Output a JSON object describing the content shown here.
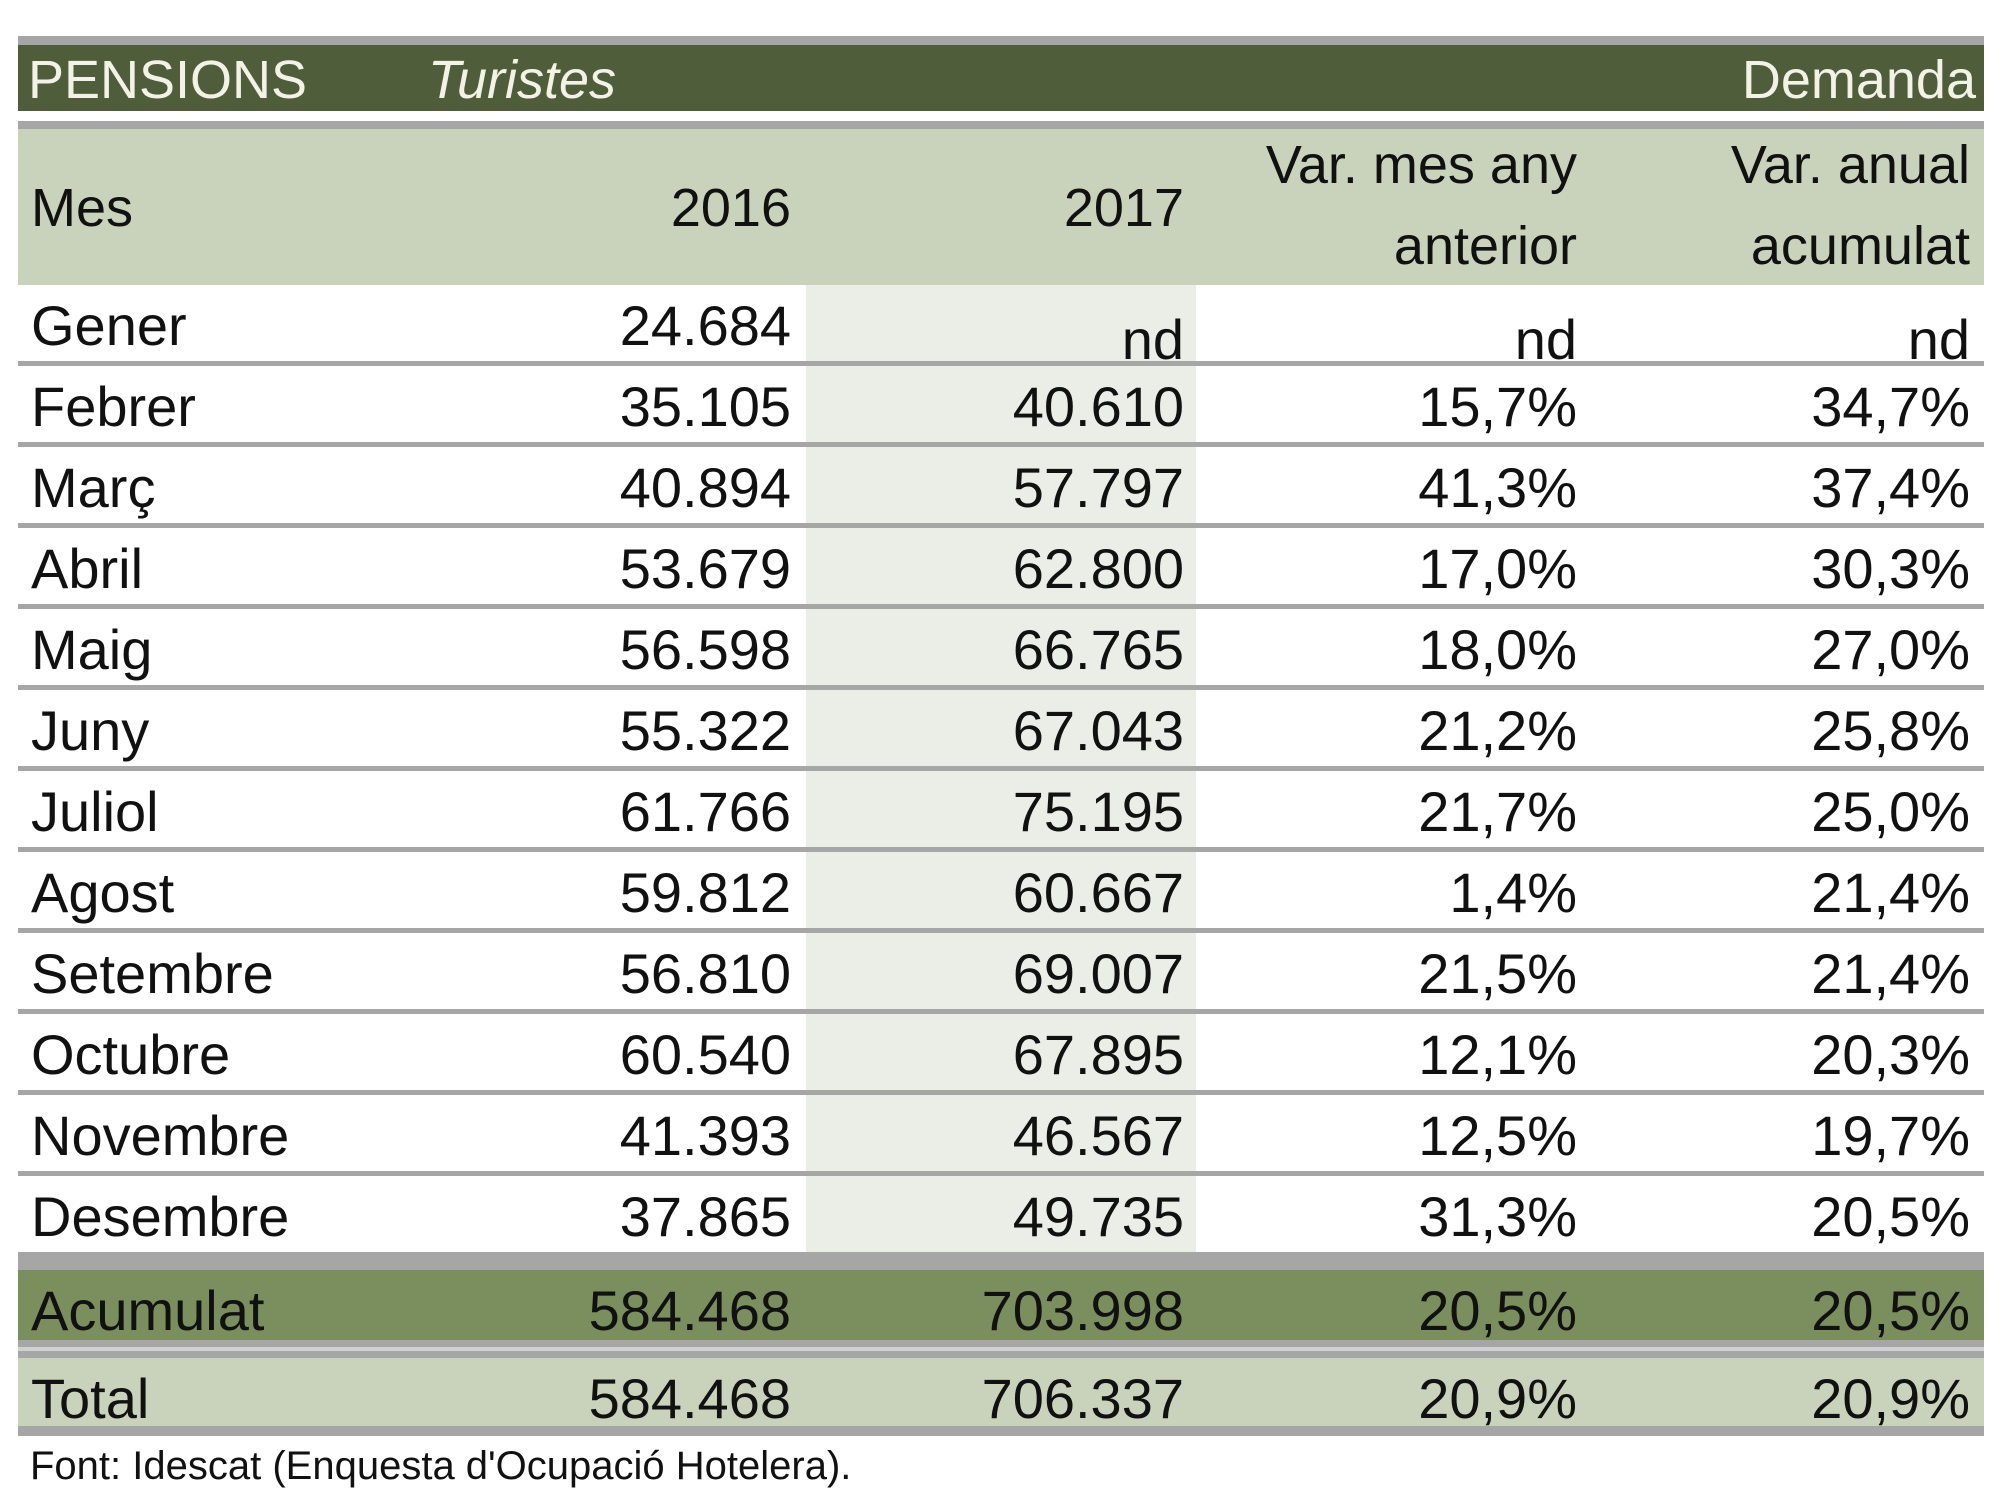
{
  "title": {
    "left": "PENSIONS",
    "middle": "Turistes",
    "right": "Demanda"
  },
  "columns": {
    "mes": "Mes",
    "y2016": "2016",
    "y2017": "2017",
    "var_mes_1": "Var. mes any",
    "var_mes_2": "anterior",
    "var_anual_1": "Var. anual",
    "var_anual_2": "acumulat"
  },
  "rows": [
    [
      "Gener",
      "24.684",
      "nd",
      "nd",
      "nd"
    ],
    [
      "Febrer",
      "35.105",
      "40.610",
      "15,7%",
      "34,7%"
    ],
    [
      "Març",
      "40.894",
      "57.797",
      "41,3%",
      "37,4%"
    ],
    [
      "Abril",
      "53.679",
      "62.800",
      "17,0%",
      "30,3%"
    ],
    [
      "Maig",
      "56.598",
      "66.765",
      "18,0%",
      "27,0%"
    ],
    [
      "Juny",
      "55.322",
      "67.043",
      "21,2%",
      "25,8%"
    ],
    [
      "Juliol",
      "61.766",
      "75.195",
      "21,7%",
      "25,0%"
    ],
    [
      "Agost",
      "59.812",
      "60.667",
      "1,4%",
      "21,4%"
    ],
    [
      "Setembre",
      "56.810",
      "69.007",
      "21,5%",
      "21,4%"
    ],
    [
      "Octubre",
      "60.540",
      "67.895",
      "12,1%",
      "20,3%"
    ],
    [
      "Novembre",
      "41.393",
      "46.567",
      "12,5%",
      "19,7%"
    ],
    [
      "Desembre",
      "37.865",
      "49.735",
      "31,3%",
      "20,5%"
    ]
  ],
  "acumulat": [
    "Acumulat",
    "584.468",
    "703.998",
    "20,5%",
    "20,5%"
  ],
  "total": [
    "Total",
    "584.468",
    "706.337",
    "20,9%",
    "20,9%"
  ],
  "footnote": "Font: Idescat (Enquesta d'Ocupació Hotelera).",
  "colors": {
    "title_bg": "#4f5d3b",
    "header_bg": "#c9d3bc",
    "acumulat_bg": "#7a8e5e",
    "total_bg": "#c9d3bc",
    "col2017_bg": "#ebede7",
    "rule": "#a6a6a6"
  }
}
